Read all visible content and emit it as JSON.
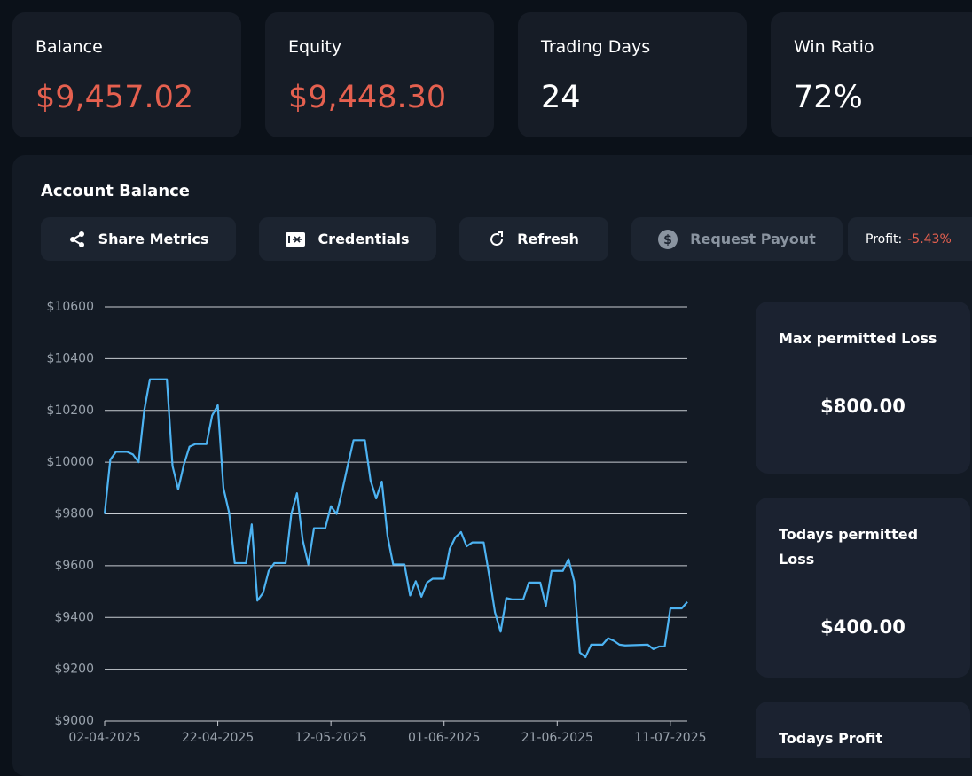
{
  "stats": [
    {
      "label": "Balance",
      "value": "$9,457.02"
    },
    {
      "label": "Equity",
      "value": "$9,448.30"
    },
    {
      "label": "Trading Days",
      "value": "24"
    },
    {
      "label": "Win Ratio",
      "value": "72%"
    }
  ],
  "panel": {
    "title": "Account Balance",
    "buttons": [
      "Share Metrics",
      "Credentials",
      "Refresh",
      "Request Payout"
    ],
    "profit": {
      "label": "Profit:",
      "value": "-5.43%"
    }
  },
  "limits": [
    {
      "label": "Max permitted Loss",
      "value": "$800.00"
    },
    {
      "label": "Todays permitted Loss",
      "value": "$400.00"
    },
    {
      "label": "Todays Profit"
    }
  ],
  "chart_data": {
    "type": "line",
    "color": "#4db3f2",
    "grid": true,
    "x": [
      "02-04-2025",
      "03-04-2025",
      "04-04-2025",
      "06-04-2025",
      "07-04-2025",
      "08-04-2025",
      "09-04-2025",
      "10-04-2025",
      "13-04-2025",
      "14-04-2025",
      "15-04-2025",
      "16-04-2025",
      "17-04-2025",
      "18-04-2025",
      "20-04-2025",
      "21-04-2025",
      "22-04-2025",
      "23-04-2025",
      "24-04-2025",
      "25-04-2025",
      "27-04-2025",
      "28-04-2025",
      "29-04-2025",
      "30-04-2025",
      "01-05-2025",
      "02-05-2025",
      "04-05-2025",
      "05-05-2025",
      "06-05-2025",
      "07-05-2025",
      "08-05-2025",
      "09-05-2025",
      "11-05-2025",
      "12-05-2025",
      "13-05-2025",
      "14-05-2025",
      "15-05-2025",
      "16-05-2025",
      "18-05-2025",
      "19-05-2025",
      "20-05-2025",
      "21-05-2025",
      "22-05-2025",
      "23-05-2025",
      "25-05-2025",
      "26-05-2025",
      "27-05-2025",
      "28-05-2025",
      "29-05-2025",
      "30-05-2025",
      "01-06-2025",
      "02-06-2025",
      "03-06-2025",
      "04-06-2025",
      "05-06-2025",
      "06-06-2025",
      "08-06-2025",
      "09-06-2025",
      "10-06-2025",
      "11-06-2025",
      "12-06-2025",
      "13-06-2025",
      "15-06-2025",
      "16-06-2025",
      "18-06-2025",
      "19-06-2025",
      "20-06-2025",
      "22-06-2025",
      "23-06-2025",
      "24-06-2025",
      "25-06-2025",
      "26-06-2025",
      "27-06-2025",
      "29-06-2025",
      "30-06-2025",
      "01-07-2025",
      "02-07-2025",
      "03-07-2025",
      "07-07-2025",
      "08-07-2025",
      "09-07-2025",
      "10-07-2025",
      "11-07-2025",
      "13-07-2025",
      "14-07-2025"
    ],
    "values": [
      9800,
      10010,
      10040,
      10040,
      10030,
      10000,
      10200,
      10320,
      10320,
      9985,
      9895,
      9990,
      10060,
      10070,
      10070,
      10180,
      10220,
      9900,
      9805,
      9610,
      9610,
      9760,
      9465,
      9495,
      9580,
      9610,
      9610,
      9800,
      9880,
      9700,
      9605,
      9745,
      9745,
      9830,
      9800,
      9890,
      9990,
      10085,
      10085,
      9930,
      9860,
      9925,
      9715,
      9605,
      9605,
      9485,
      9540,
      9480,
      9535,
      9550,
      9550,
      9665,
      9710,
      9730,
      9675,
      9690,
      9690,
      9560,
      9420,
      9345,
      9475,
      9470,
      9470,
      9535,
      9535,
      9445,
      9580,
      9580,
      9625,
      9540,
      9265,
      9247,
      9295,
      9295,
      9320,
      9310,
      9295,
      9292,
      9295,
      9278,
      9288,
      9288,
      9435,
      9435,
      9460
    ],
    "xlim": [
      "02-04-2025",
      "14-07-2025"
    ],
    "xticks": [
      "02-04-2025",
      "22-04-2025",
      "12-05-2025",
      "01-06-2025",
      "21-06-2025",
      "11-07-2025"
    ],
    "ylim": [
      9000,
      10600
    ],
    "yticks": [
      {
        "value": 9000,
        "label": "$9000"
      },
      {
        "value": 9200,
        "label": "$9200"
      },
      {
        "value": 9400,
        "label": "$9400"
      },
      {
        "value": 9600,
        "label": "$9600"
      },
      {
        "value": 9800,
        "label": "$9800"
      },
      {
        "value": 10000,
        "label": "$10000"
      },
      {
        "value": 10200,
        "label": "$10200"
      },
      {
        "value": 10400,
        "label": "$10400"
      },
      {
        "value": 10600,
        "label": "$10600"
      }
    ]
  }
}
